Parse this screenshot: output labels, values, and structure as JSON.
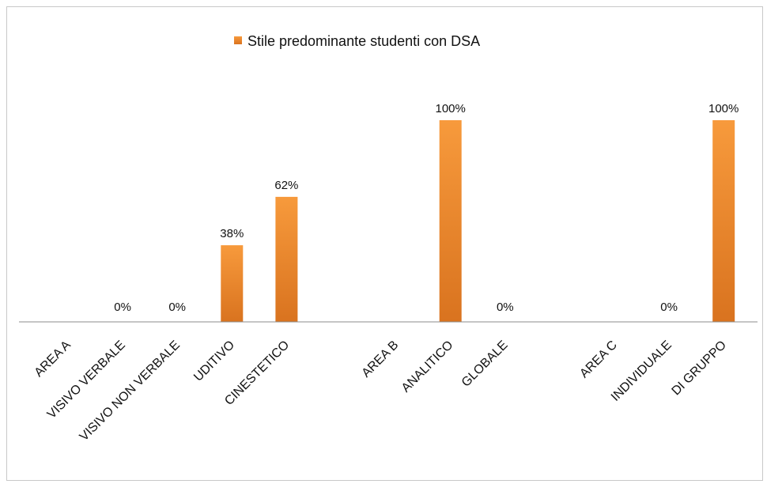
{
  "chart_data": {
    "type": "bar",
    "categories": [
      "AREA A",
      "VISIVO VERBALE",
      "VISIVO NON VERBALE",
      "UDITIVO",
      "CINESTETICO",
      "",
      "AREA B",
      "ANALITICO",
      "GLOBALE",
      "",
      "AREA C",
      "INDIVIDUALE",
      "DI GRUPPO"
    ],
    "series": [
      {
        "name": "Stile predominante studenti con DSA",
        "values": [
          null,
          0,
          0,
          38,
          62,
          null,
          null,
          100,
          0,
          null,
          null,
          0,
          100
        ],
        "labels": [
          "",
          "0%",
          "0%",
          "38%",
          "62%",
          "",
          "",
          "100%",
          "0%",
          "",
          "",
          "0%",
          "100%"
        ]
      }
    ],
    "ylim": [
      0,
      100
    ],
    "grid": false,
    "legend": "top",
    "colors": {
      "bar_top": "#f79a3c",
      "bar_bottom": "#d9731f",
      "axis": "#8c8c8c"
    }
  }
}
